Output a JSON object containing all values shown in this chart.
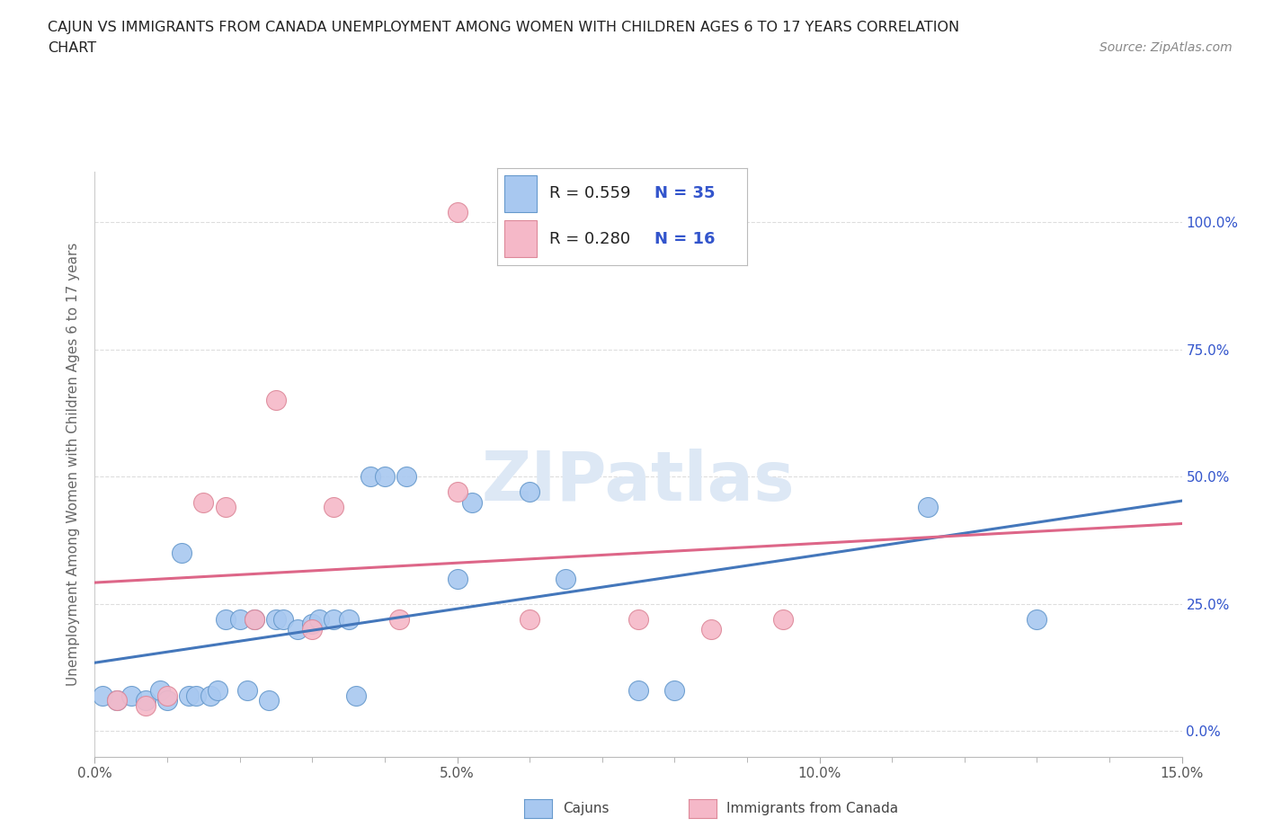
{
  "title_line1": "CAJUN VS IMMIGRANTS FROM CANADA UNEMPLOYMENT AMONG WOMEN WITH CHILDREN AGES 6 TO 17 YEARS CORRELATION",
  "title_line2": "CHART",
  "source_text": "Source: ZipAtlas.com",
  "ylabel": "Unemployment Among Women with Children Ages 6 to 17 years",
  "xlim": [
    0.0,
    0.15
  ],
  "ylim": [
    -0.05,
    1.1
  ],
  "xticks": [
    0.0,
    0.05,
    0.1,
    0.15
  ],
  "xticklabels": [
    "0.0%",
    "5.0%",
    "10.0%",
    "15.0%"
  ],
  "yticks": [
    0.0,
    0.25,
    0.5,
    0.75,
    1.0
  ],
  "yticklabels_right": [
    "0.0%",
    "25.0%",
    "50.0%",
    "75.0%",
    "100.0%"
  ],
  "cajun_color": "#a8c8f0",
  "canada_color": "#f5b8c8",
  "cajun_edge_color": "#6699cc",
  "canada_edge_color": "#dd8899",
  "cajun_line_color": "#4477bb",
  "canada_line_color": "#dd6688",
  "legend_r_cajun": "R = 0.559",
  "legend_n_cajun": "N = 35",
  "legend_r_canada": "R = 0.280",
  "legend_n_canada": "N = 16",
  "legend_text_color": "#3355cc",
  "watermark_color": "#dde8f5",
  "background_color": "#ffffff",
  "grid_color": "#dddddd",
  "cajun_x": [
    0.001,
    0.003,
    0.005,
    0.007,
    0.009,
    0.01,
    0.012,
    0.013,
    0.014,
    0.016,
    0.017,
    0.018,
    0.02,
    0.021,
    0.022,
    0.024,
    0.025,
    0.026,
    0.028,
    0.03,
    0.031,
    0.033,
    0.035,
    0.036,
    0.038,
    0.04,
    0.043,
    0.05,
    0.052,
    0.06,
    0.065,
    0.075,
    0.08,
    0.115,
    0.13
  ],
  "cajun_y": [
    0.07,
    0.06,
    0.07,
    0.06,
    0.08,
    0.06,
    0.35,
    0.07,
    0.07,
    0.07,
    0.08,
    0.22,
    0.22,
    0.08,
    0.22,
    0.06,
    0.22,
    0.22,
    0.2,
    0.21,
    0.22,
    0.22,
    0.22,
    0.07,
    0.5,
    0.5,
    0.5,
    0.3,
    0.45,
    0.47,
    0.3,
    0.08,
    0.08,
    0.44,
    0.22
  ],
  "canada_x": [
    0.003,
    0.007,
    0.01,
    0.015,
    0.018,
    0.022,
    0.025,
    0.03,
    0.033,
    0.042,
    0.05,
    0.05,
    0.06,
    0.075,
    0.085,
    0.095
  ],
  "canada_y": [
    0.06,
    0.05,
    0.07,
    0.45,
    0.44,
    0.22,
    0.65,
    0.2,
    0.44,
    0.22,
    1.02,
    0.47,
    0.22,
    0.22,
    0.2,
    0.22
  ]
}
